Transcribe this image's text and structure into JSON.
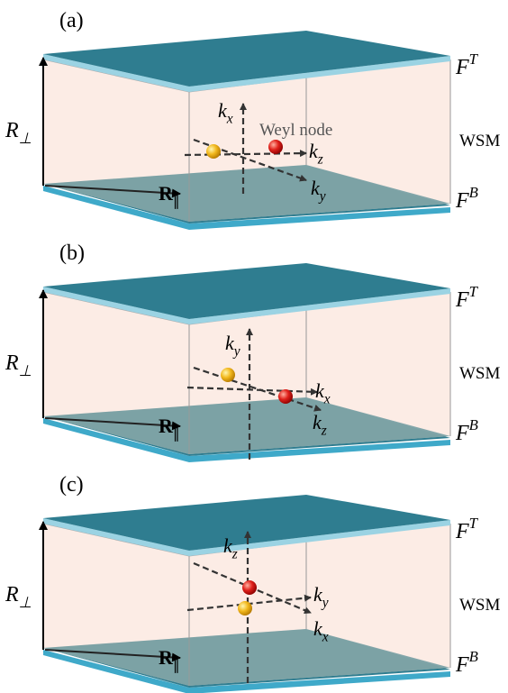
{
  "panels": [
    {
      "label": "(a)",
      "top_plate": {
        "base": "F",
        "sup": "T"
      },
      "bottom_plate": {
        "base": "F",
        "sup": "B"
      },
      "material": "WSM",
      "r_perp": {
        "base": "R",
        "sub": "⊥"
      },
      "r_par": {
        "base": "R",
        "sub": "∥"
      },
      "axes": {
        "vertical": {
          "base": "k",
          "sub": "x"
        },
        "horizontal": {
          "base": "k",
          "sub": "z"
        },
        "diagonal": {
          "base": "k",
          "sub": "y"
        }
      },
      "annotation": "Weyl node"
    },
    {
      "label": "(b)",
      "top_plate": {
        "base": "F",
        "sup": "T"
      },
      "bottom_plate": {
        "base": "F",
        "sup": "B"
      },
      "material": "WSM",
      "r_perp": {
        "base": "R",
        "sub": "⊥"
      },
      "r_par": {
        "base": "R",
        "sub": "∥"
      },
      "axes": {
        "vertical": {
          "base": "k",
          "sub": "y"
        },
        "horizontal": {
          "base": "k",
          "sub": "x"
        },
        "diagonal": {
          "base": "k",
          "sub": "z"
        }
      }
    },
    {
      "label": "(c)",
      "top_plate": {
        "base": "F",
        "sup": "T"
      },
      "bottom_plate": {
        "base": "F",
        "sup": "B"
      },
      "material": "WSM",
      "r_perp": {
        "base": "R",
        "sub": "⊥"
      },
      "r_par": {
        "base": "R",
        "sub": "∥"
      },
      "axes": {
        "vertical": {
          "base": "k",
          "sub": "z"
        },
        "horizontal": {
          "base": "k",
          "sub": "y"
        },
        "diagonal": {
          "base": "k",
          "sub": "x"
        }
      }
    }
  ]
}
